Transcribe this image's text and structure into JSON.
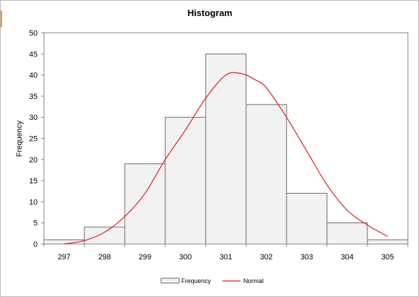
{
  "chart_data": {
    "type": "bar",
    "title": "Histogram",
    "xlabel": "",
    "ylabel": "Frequency",
    "ylim": [
      0,
      50
    ],
    "yticks": [
      0,
      5,
      10,
      15,
      20,
      25,
      30,
      35,
      40,
      45,
      50
    ],
    "categories": [
      "297",
      "298",
      "299",
      "300",
      "301",
      "302",
      "303",
      "304",
      "305"
    ],
    "series": [
      {
        "name": "Frequency",
        "type": "bar",
        "values": [
          1,
          4,
          19,
          30,
          45,
          33,
          12,
          5,
          1
        ],
        "color": "#f2f2f2",
        "edge_color": "#666666"
      },
      {
        "name": "Normal",
        "type": "line",
        "color": "#e3151c",
        "points": [
          [
            297.0,
            0.0
          ],
          [
            297.5,
            0.8
          ],
          [
            298.0,
            2.8
          ],
          [
            298.5,
            6.5
          ],
          [
            299.0,
            12.0
          ],
          [
            299.5,
            20.0
          ],
          [
            300.0,
            27.0
          ],
          [
            300.5,
            34.5
          ],
          [
            301.0,
            40.0
          ],
          [
            301.4,
            40.3
          ],
          [
            301.7,
            39.0
          ],
          [
            302.0,
            37.0
          ],
          [
            302.5,
            30.0
          ],
          [
            303.0,
            22.0
          ],
          [
            303.5,
            14.0
          ],
          [
            304.0,
            8.0
          ],
          [
            304.5,
            4.5
          ],
          [
            305.0,
            1.8
          ]
        ]
      }
    ],
    "legend": {
      "position": "bottom",
      "entries": [
        "Frequency",
        "Normal"
      ]
    },
    "grid": false
  }
}
